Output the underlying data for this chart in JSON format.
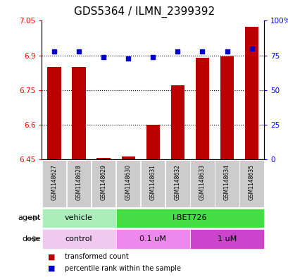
{
  "title": "GDS5364 / ILMN_2399392",
  "samples": [
    "GSM1148627",
    "GSM1148628",
    "GSM1148629",
    "GSM1148630",
    "GSM1148631",
    "GSM1148632",
    "GSM1148633",
    "GSM1148634",
    "GSM1148635"
  ],
  "transformed_counts": [
    6.85,
    6.85,
    6.455,
    6.462,
    6.601,
    6.77,
    6.89,
    6.895,
    7.025
  ],
  "percentile_ranks": [
    78,
    78,
    74,
    73,
    74,
    78,
    78,
    78,
    80
  ],
  "bar_color": "#bb0000",
  "dot_color": "#0000cc",
  "ylim_left": [
    6.45,
    7.05
  ],
  "ylim_right": [
    0,
    100
  ],
  "yticks_left": [
    6.45,
    6.6,
    6.75,
    6.9,
    7.05
  ],
  "ytick_labels_left": [
    "6.45",
    "6.6",
    "6.75",
    "6.9",
    "7.05"
  ],
  "yticks_right": [
    0,
    25,
    50,
    75,
    100
  ],
  "ytick_labels_right": [
    "0",
    "25",
    "50",
    "75",
    "100%"
  ],
  "dotted_lines": [
    6.9,
    6.75,
    6.6
  ],
  "agent_groups": [
    {
      "label": "vehicle",
      "start": 0,
      "end": 3,
      "color": "#aaeebb"
    },
    {
      "label": "I-BET726",
      "start": 3,
      "end": 9,
      "color": "#44dd44"
    }
  ],
  "dose_groups": [
    {
      "label": "control",
      "start": 0,
      "end": 3,
      "color": "#eebbee"
    },
    {
      "label": "0.1 uM",
      "start": 3,
      "end": 6,
      "color": "#ee88ee"
    },
    {
      "label": "1 uM",
      "start": 6,
      "end": 9,
      "color": "#cc44cc"
    }
  ],
  "legend_bar_label": "transformed count",
  "legend_dot_label": "percentile rank within the sample",
  "agent_label": "agent",
  "dose_label": "dose",
  "title_fontsize": 11,
  "tick_fontsize": 7.5,
  "sample_fontsize": 5.5,
  "group_fontsize": 8,
  "legend_fontsize": 7,
  "background_color": "#ffffff",
  "plot_bg_color": "#ffffff",
  "sample_box_color": "#cccccc",
  "arrow_color": "#888888"
}
